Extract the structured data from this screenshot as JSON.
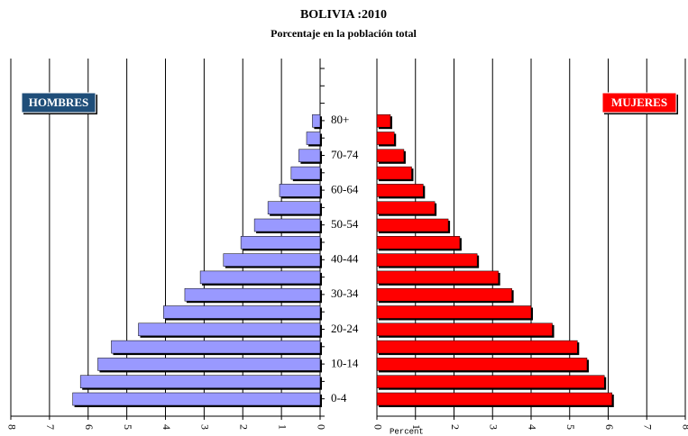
{
  "chart_data": {
    "type": "pyramid",
    "title": "BOLIVIA :2010",
    "subtitle": "Porcentaje en la población total",
    "x_label": "Percent",
    "categories": [
      "0-4",
      null,
      "10-14",
      null,
      "20-24",
      null,
      "30-34",
      null,
      "40-44",
      null,
      "50-54",
      null,
      "60-64",
      null,
      "70-74",
      null,
      "80+"
    ],
    "series": [
      {
        "name": "HOMBRES",
        "color": "#9999ff",
        "label_color": "#1f4e79",
        "side": "left",
        "values": [
          6.4,
          6.2,
          5.75,
          5.4,
          4.7,
          4.05,
          3.5,
          3.1,
          2.5,
          2.05,
          1.7,
          1.35,
          1.05,
          0.75,
          0.55,
          0.35,
          0.2
        ]
      },
      {
        "name": "MUJERES",
        "color": "#ff0000",
        "label_color": "#ff0000",
        "side": "right",
        "values": [
          6.1,
          5.9,
          5.45,
          5.2,
          4.55,
          4.0,
          3.5,
          3.15,
          2.6,
          2.15,
          1.85,
          1.5,
          1.2,
          0.9,
          0.7,
          0.45,
          0.35
        ]
      }
    ],
    "xlim": [
      0,
      8
    ],
    "xticks": [
      0,
      1,
      2,
      3,
      4,
      5,
      6,
      7,
      8
    ],
    "grid": true
  }
}
